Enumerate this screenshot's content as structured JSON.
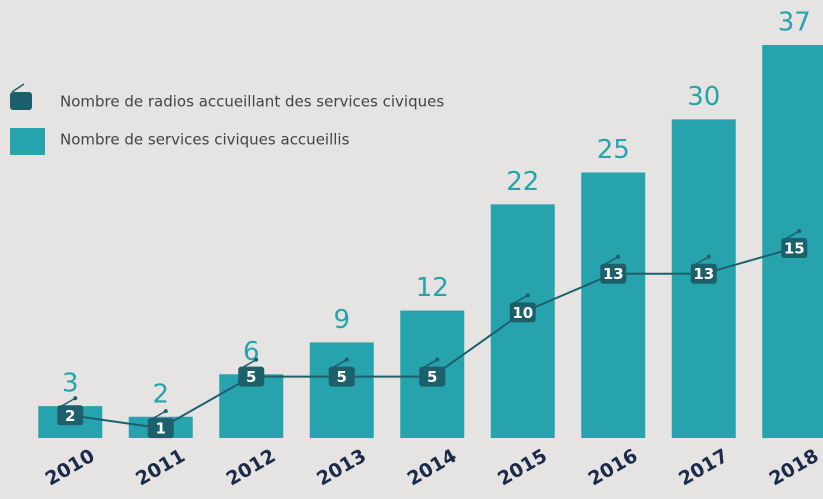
{
  "chart_data": {
    "type": "bar",
    "categories": [
      "2010",
      "2011",
      "2012",
      "2013",
      "2014",
      "2015",
      "2016",
      "2017",
      "2018"
    ],
    "series": [
      {
        "name": "Nombre de services civiques accueillis",
        "type": "bar",
        "color": "#26a3ad",
        "values": [
          3,
          2,
          6,
          9,
          12,
          22,
          25,
          30,
          37
        ]
      },
      {
        "name": "Nombre de radios accueillant des services civiques",
        "type": "line",
        "color": "#1d5f6b",
        "values": [
          2,
          1,
          5,
          5,
          5,
          10,
          13,
          13,
          15
        ]
      }
    ],
    "legend": "upper left"
  }
}
